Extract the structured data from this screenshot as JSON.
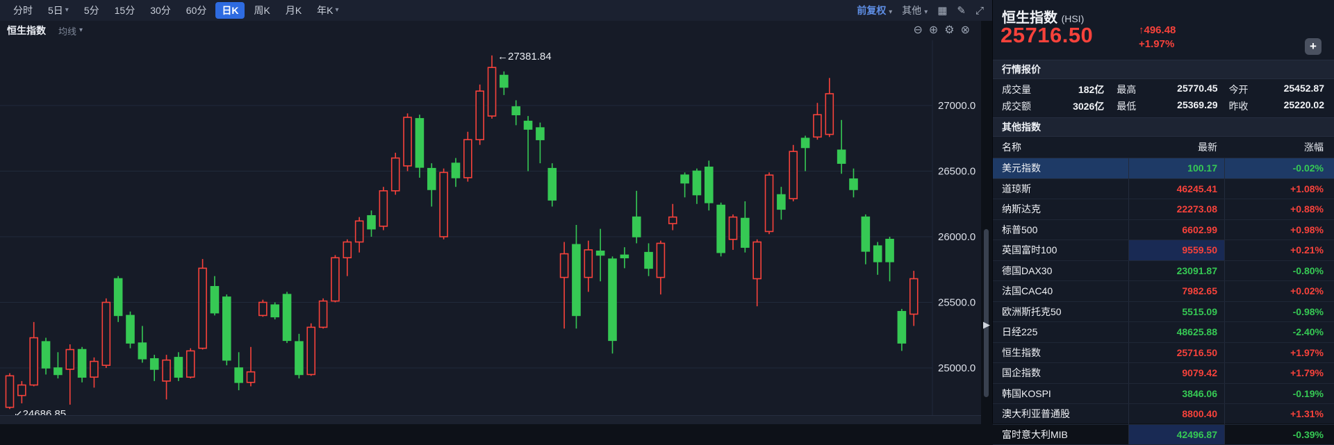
{
  "toolbar": {
    "periods": [
      {
        "label": "分时",
        "caret": false,
        "selected": false
      },
      {
        "label": "5日",
        "caret": true,
        "selected": false
      },
      {
        "label": "5分",
        "caret": false,
        "selected": false
      },
      {
        "label": "15分",
        "caret": false,
        "selected": false
      },
      {
        "label": "30分",
        "caret": false,
        "selected": false
      },
      {
        "label": "60分",
        "caret": false,
        "selected": false
      },
      {
        "label": "日K",
        "caret": false,
        "selected": true
      },
      {
        "label": "周K",
        "caret": false,
        "selected": false
      },
      {
        "label": "月K",
        "caret": false,
        "selected": false
      },
      {
        "label": "年K",
        "caret": true,
        "selected": false
      }
    ],
    "adjust_label": "前复权",
    "other_label": "其他",
    "icons": [
      "grid-icon",
      "brush-icon",
      "expand-icon"
    ]
  },
  "chart_header": {
    "symbol": "恒生指数",
    "overlay_label": "均线"
  },
  "chart_data": {
    "type": "candlestick",
    "title": "恒生指数 日K",
    "y_ticks": [
      27000.0,
      26500.0,
      26000.0,
      25500.0,
      25000.0
    ],
    "y_range": [
      24600,
      27500
    ],
    "grid": "horizontal",
    "annotations": {
      "high_label": "27381.84",
      "low_label": "24686.85",
      "high_candle_index": 40,
      "low_candle_index": 0
    },
    "candles": [
      [
        24700,
        24960,
        24686.85,
        24940
      ],
      [
        24790,
        24900,
        24730,
        24870
      ],
      [
        24870,
        25350,
        24860,
        25230
      ],
      [
        25200,
        25230,
        24950,
        25000
      ],
      [
        25000,
        25120,
        24920,
        24950
      ],
      [
        24990,
        25180,
        24720,
        25140
      ],
      [
        25140,
        25160,
        24890,
        24930
      ],
      [
        24930,
        25080,
        24850,
        25050
      ],
      [
        25020,
        25530,
        25000,
        25500
      ],
      [
        25680,
        25700,
        25350,
        25400
      ],
      [
        25400,
        25430,
        25150,
        25190
      ],
      [
        25190,
        25320,
        25040,
        25070
      ],
      [
        25070,
        25100,
        24900,
        24990
      ],
      [
        24900,
        25100,
        24760,
        25060
      ],
      [
        25080,
        25120,
        24900,
        24930
      ],
      [
        24930,
        25150,
        24920,
        25130
      ],
      [
        25150,
        25830,
        25140,
        25760
      ],
      [
        25620,
        25700,
        25400,
        25420
      ],
      [
        25540,
        25560,
        25020,
        25060
      ],
      [
        25000,
        25120,
        24830,
        24890
      ],
      [
        24890,
        25160,
        24860,
        24970
      ],
      [
        25400,
        25520,
        25390,
        25500
      ],
      [
        25480,
        25500,
        25370,
        25390
      ],
      [
        25560,
        25580,
        25190,
        25210
      ],
      [
        25200,
        25260,
        24920,
        24950
      ],
      [
        24950,
        25340,
        24940,
        25310
      ],
      [
        25310,
        25530,
        25300,
        25510
      ],
      [
        25510,
        25860,
        25500,
        25840
      ],
      [
        25840,
        25980,
        25700,
        25960
      ],
      [
        25960,
        26150,
        25880,
        26120
      ],
      [
        26160,
        26200,
        26000,
        26060
      ],
      [
        26080,
        26380,
        26050,
        26350
      ],
      [
        26350,
        26640,
        26320,
        26600
      ],
      [
        26540,
        26940,
        26500,
        26910
      ],
      [
        26900,
        26930,
        26450,
        26530
      ],
      [
        26520,
        26560,
        26230,
        26360
      ],
      [
        26000,
        26520,
        25980,
        26490
      ],
      [
        26560,
        26600,
        26380,
        26450
      ],
      [
        26450,
        26800,
        26420,
        26740
      ],
      [
        26740,
        27160,
        26700,
        27110
      ],
      [
        26920,
        27381.84,
        26900,
        27290
      ],
      [
        27230,
        27260,
        27080,
        27140
      ],
      [
        26990,
        27040,
        26850,
        26930
      ],
      [
        26880,
        26920,
        26500,
        26820
      ],
      [
        26830,
        26870,
        26560,
        26740
      ],
      [
        26520,
        26560,
        26230,
        26280
      ],
      [
        25690,
        25960,
        25300,
        25870
      ],
      [
        25940,
        26090,
        25300,
        25400
      ],
      [
        25690,
        25970,
        25580,
        25900
      ],
      [
        25890,
        26060,
        25660,
        25860
      ],
      [
        25830,
        25850,
        25110,
        25210
      ],
      [
        25860,
        25920,
        25760,
        25840
      ],
      [
        26150,
        26350,
        25950,
        26000
      ],
      [
        25880,
        25950,
        25700,
        25760
      ],
      [
        25690,
        25970,
        25560,
        25950
      ],
      [
        26100,
        26250,
        26050,
        26150
      ],
      [
        26470,
        26490,
        26300,
        26410
      ],
      [
        26500,
        26520,
        26250,
        26320
      ],
      [
        26530,
        26580,
        26200,
        26260
      ],
      [
        26240,
        26260,
        25850,
        25880
      ],
      [
        25980,
        26170,
        25900,
        26150
      ],
      [
        26140,
        26270,
        25880,
        25920
      ],
      [
        25680,
        25980,
        25470,
        25960
      ],
      [
        26040,
        26490,
        26020,
        26470
      ],
      [
        26320,
        26380,
        26130,
        26210
      ],
      [
        26290,
        26700,
        26270,
        26650
      ],
      [
        26750,
        26770,
        26500,
        26680
      ],
      [
        26760,
        27020,
        26740,
        26930
      ],
      [
        26780,
        27210,
        26760,
        27090
      ],
      [
        26660,
        26890,
        26480,
        26560
      ],
      [
        26440,
        26520,
        26300,
        26360
      ],
      [
        26150,
        26170,
        25790,
        25890
      ],
      [
        25930,
        25960,
        25710,
        25810
      ],
      [
        25980,
        26000,
        25660,
        25810
      ],
      [
        25430,
        25450,
        25130,
        25190
      ],
      [
        25410,
        25740,
        25320,
        25680
      ]
    ]
  },
  "panel": {
    "title": "恒生指数",
    "code": "(HSI)",
    "price": "25716.50",
    "change_arrow": "↑",
    "change": "496.48",
    "change_pct": "+1.97%",
    "add_button_label": "+",
    "quote_section_title": "行情报价",
    "quotes": [
      {
        "label": "成交量",
        "value": "182亿",
        "color": "neutral"
      },
      {
        "label": "最高",
        "value": "25770.45",
        "color": "up"
      },
      {
        "label": "今开",
        "value": "25452.87",
        "color": "up"
      },
      {
        "label": "成交额",
        "value": "3026亿",
        "color": "neutral"
      },
      {
        "label": "最低",
        "value": "25369.29",
        "color": "up"
      },
      {
        "label": "昨收",
        "value": "25220.02",
        "color": "neutral"
      }
    ],
    "indices_section_title": "其他指数",
    "table": {
      "headers": [
        "名称",
        "最新",
        "涨幅"
      ],
      "rows": [
        {
          "name": "美元指数",
          "value": "100.17",
          "change": "-0.02%",
          "trend": "down",
          "selected": true,
          "flash": false
        },
        {
          "name": "道琼斯",
          "value": "46245.41",
          "change": "+1.08%",
          "trend": "up",
          "selected": false,
          "flash": false
        },
        {
          "name": "纳斯达克",
          "value": "22273.08",
          "change": "+0.88%",
          "trend": "up",
          "selected": false,
          "flash": false
        },
        {
          "name": "标普500",
          "value": "6602.99",
          "change": "+0.98%",
          "trend": "up",
          "selected": false,
          "flash": false
        },
        {
          "name": "英国富时100",
          "value": "9559.50",
          "change": "+0.21%",
          "trend": "up",
          "selected": false,
          "flash": true
        },
        {
          "name": "德国DAX30",
          "value": "23091.87",
          "change": "-0.80%",
          "trend": "down",
          "selected": false,
          "flash": false
        },
        {
          "name": "法国CAC40",
          "value": "7982.65",
          "change": "+0.02%",
          "trend": "up",
          "selected": false,
          "flash": false
        },
        {
          "name": "欧洲斯托克50",
          "value": "5515.09",
          "change": "-0.98%",
          "trend": "down",
          "selected": false,
          "flash": false
        },
        {
          "name": "日经225",
          "value": "48625.88",
          "change": "-2.40%",
          "trend": "down",
          "selected": false,
          "flash": false
        },
        {
          "name": "恒生指数",
          "value": "25716.50",
          "change": "+1.97%",
          "trend": "up",
          "selected": false,
          "flash": false
        },
        {
          "name": "国企指数",
          "value": "9079.42",
          "change": "+1.79%",
          "trend": "up",
          "selected": false,
          "flash": false
        },
        {
          "name": "韩国KOSPI",
          "value": "3846.06",
          "change": "-0.19%",
          "trend": "down",
          "selected": false,
          "flash": false
        },
        {
          "name": "澳大利亚普通股",
          "value": "8800.40",
          "change": "+1.31%",
          "trend": "up",
          "selected": false,
          "flash": false
        },
        {
          "name": "富时意大利MIB",
          "value": "42496.87",
          "change": "-0.39%",
          "trend": "down",
          "selected": false,
          "flash": true
        }
      ]
    }
  },
  "colors": {
    "up": "#f7423b",
    "down": "#36c954",
    "chart_bg": "#161b27",
    "grid": "#202a3b",
    "accent_chip": "#2e6be0",
    "adjust_text": "#5f8fe6",
    "selected_row": "#1e3a66",
    "flash_cell": "#192a54"
  }
}
